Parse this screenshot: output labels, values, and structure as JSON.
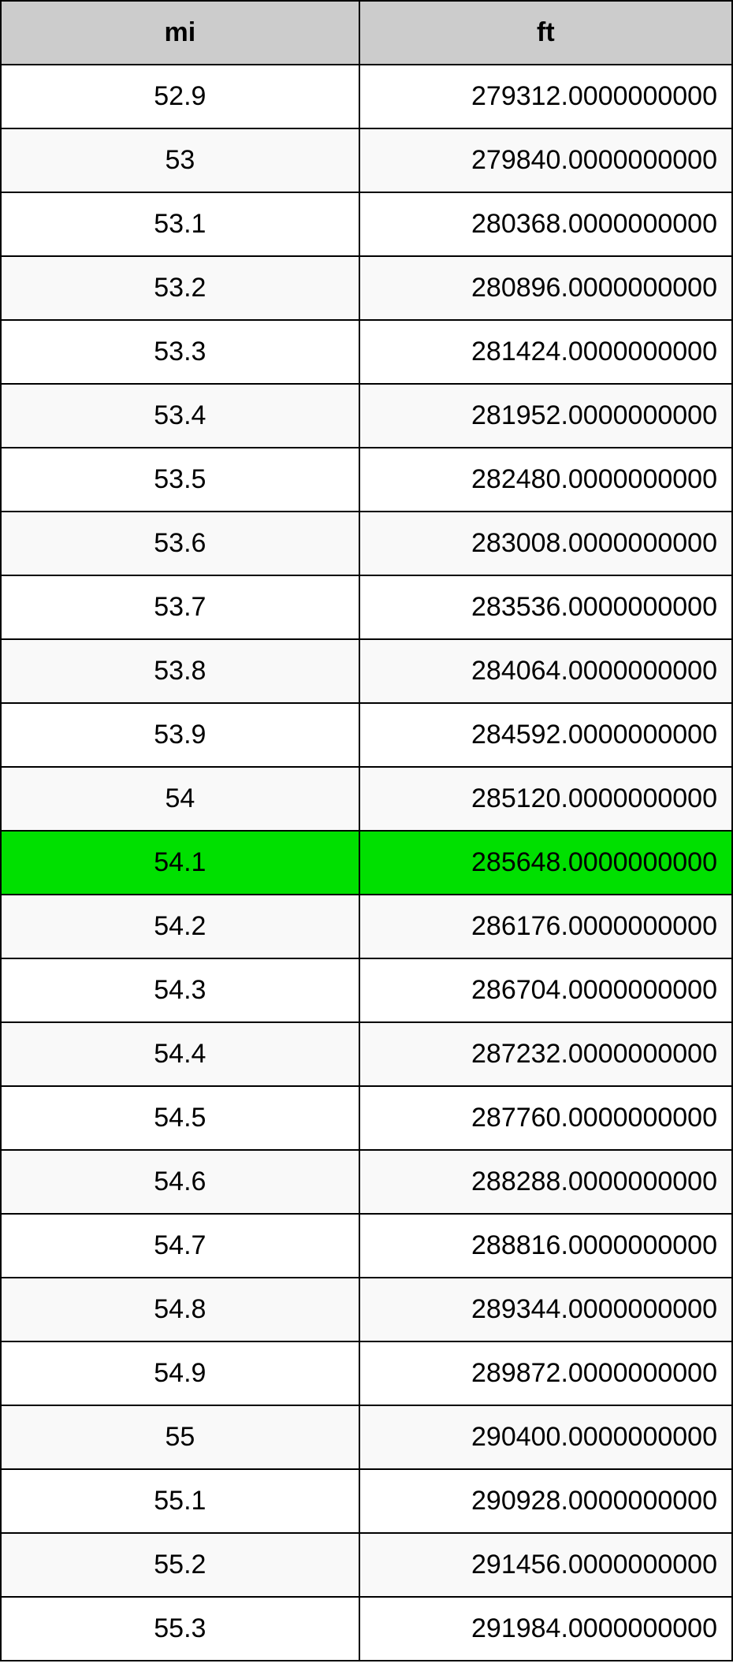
{
  "table": {
    "columns": [
      "mi",
      "ft"
    ],
    "header_bg": "#cccccc",
    "border_color": "#000000",
    "row_bg_odd": "#ffffff",
    "row_bg_even": "#f9f9f9",
    "highlight_bg": "#00e000",
    "font_size_pt": 26,
    "col_align": [
      "center",
      "right"
    ],
    "highlight_index": 12,
    "rows": [
      {
        "mi": "52.9",
        "ft": "279312.0000000000"
      },
      {
        "mi": "53",
        "ft": "279840.0000000000"
      },
      {
        "mi": "53.1",
        "ft": "280368.0000000000"
      },
      {
        "mi": "53.2",
        "ft": "280896.0000000000"
      },
      {
        "mi": "53.3",
        "ft": "281424.0000000000"
      },
      {
        "mi": "53.4",
        "ft": "281952.0000000000"
      },
      {
        "mi": "53.5",
        "ft": "282480.0000000000"
      },
      {
        "mi": "53.6",
        "ft": "283008.0000000000"
      },
      {
        "mi": "53.7",
        "ft": "283536.0000000000"
      },
      {
        "mi": "53.8",
        "ft": "284064.0000000000"
      },
      {
        "mi": "53.9",
        "ft": "284592.0000000000"
      },
      {
        "mi": "54",
        "ft": "285120.0000000000"
      },
      {
        "mi": "54.1",
        "ft": "285648.0000000000"
      },
      {
        "mi": "54.2",
        "ft": "286176.0000000000"
      },
      {
        "mi": "54.3",
        "ft": "286704.0000000000"
      },
      {
        "mi": "54.4",
        "ft": "287232.0000000000"
      },
      {
        "mi": "54.5",
        "ft": "287760.0000000000"
      },
      {
        "mi": "54.6",
        "ft": "288288.0000000000"
      },
      {
        "mi": "54.7",
        "ft": "288816.0000000000"
      },
      {
        "mi": "54.8",
        "ft": "289344.0000000000"
      },
      {
        "mi": "54.9",
        "ft": "289872.0000000000"
      },
      {
        "mi": "55",
        "ft": "290400.0000000000"
      },
      {
        "mi": "55.1",
        "ft": "290928.0000000000"
      },
      {
        "mi": "55.2",
        "ft": "291456.0000000000"
      },
      {
        "mi": "55.3",
        "ft": "291984.0000000000"
      }
    ]
  }
}
